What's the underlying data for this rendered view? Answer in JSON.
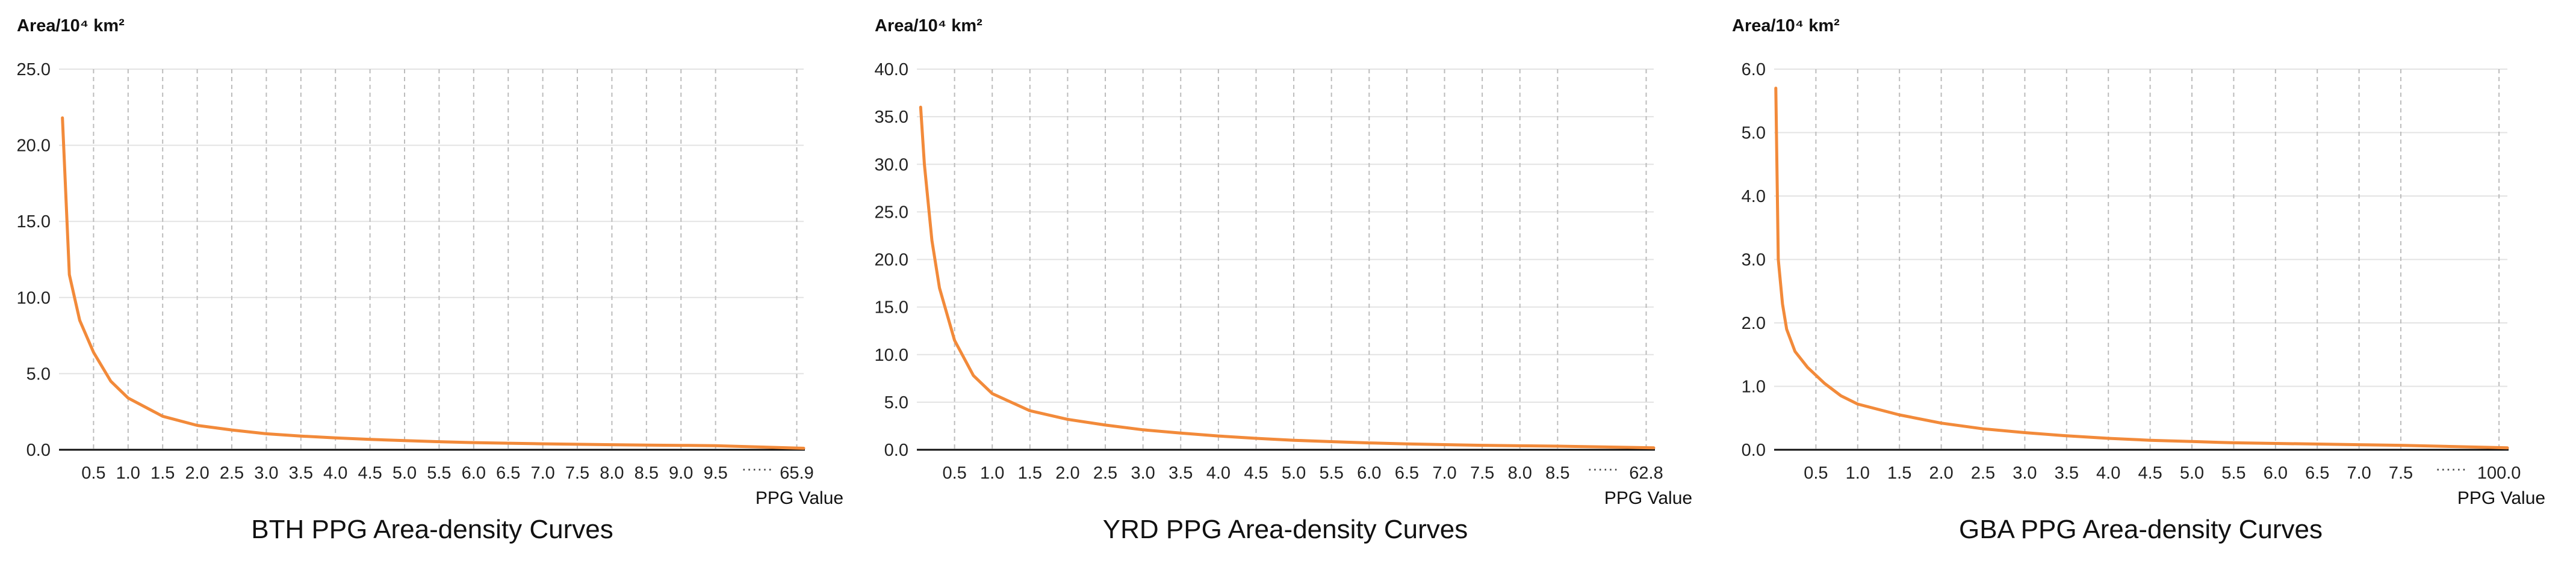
{
  "chart_data": [
    {
      "type": "line",
      "title": "BTH PPG Area-density Curves",
      "xlabel": "PPG Value",
      "ylabel": "Area/10⁴ km²",
      "ylim": [
        0,
        25
      ],
      "yticks": [
        "0.0",
        "5.0",
        "10.0",
        "15.0",
        "20.0",
        "25.0"
      ],
      "xticks": [
        "0.5",
        "1.0",
        "1.5",
        "2.0",
        "2.5",
        "3.0",
        "3.5",
        "4.0",
        "4.5",
        "5.0",
        "5.5",
        "6.0",
        "6.5",
        "7.0",
        "7.5",
        "8.0",
        "8.5",
        "9.0",
        "9.5"
      ],
      "x_ellipsis": "······",
      "x_max_label": "65.9",
      "grid": true,
      "color": "#f28a3a",
      "series": [
        {
          "x": [
            0.05,
            0.15,
            0.3,
            0.5,
            0.75,
            1.0,
            1.5,
            2.0,
            2.5,
            3.0,
            3.5,
            4.0,
            4.5,
            5.0,
            5.5,
            6.0,
            6.5,
            7.0,
            7.5,
            8.0,
            8.5,
            9.0,
            9.5,
            65.9
          ],
          "y": [
            21.8,
            11.5,
            8.5,
            6.4,
            4.5,
            3.4,
            2.2,
            1.6,
            1.3,
            1.05,
            0.9,
            0.78,
            0.68,
            0.6,
            0.53,
            0.47,
            0.43,
            0.39,
            0.36,
            0.33,
            0.31,
            0.29,
            0.27,
            0.1
          ]
        }
      ]
    },
    {
      "type": "line",
      "title": "YRD PPG Area-density Curves",
      "xlabel": "PPG Value",
      "ylabel": "Area/10⁴ km²",
      "ylim": [
        0,
        40
      ],
      "yticks": [
        "0.0",
        "5.0",
        "10.0",
        "15.0",
        "20.0",
        "25.0",
        "30.0",
        "35.0",
        "40.0"
      ],
      "xticks": [
        "0.5",
        "1.0",
        "1.5",
        "2.0",
        "2.5",
        "3.0",
        "3.5",
        "4.0",
        "4.5",
        "5.0",
        "5.5",
        "6.0",
        "6.5",
        "7.0",
        "7.5",
        "8.0",
        "8.5"
      ],
      "x_ellipsis": "······",
      "x_max_label": "62.8",
      "grid": true,
      "color": "#f28a3a",
      "series": [
        {
          "x": [
            0.05,
            0.1,
            0.2,
            0.3,
            0.5,
            0.75,
            1.0,
            1.5,
            2.0,
            2.5,
            3.0,
            3.5,
            4.0,
            4.5,
            5.0,
            5.5,
            6.0,
            6.5,
            7.0,
            7.5,
            8.0,
            8.5,
            62.8
          ],
          "y": [
            36.0,
            30.0,
            22.0,
            17.0,
            11.5,
            7.8,
            5.9,
            4.1,
            3.2,
            2.6,
            2.1,
            1.75,
            1.45,
            1.2,
            1.0,
            0.85,
            0.72,
            0.62,
            0.54,
            0.47,
            0.42,
            0.38,
            0.2
          ]
        }
      ]
    },
    {
      "type": "line",
      "title": "GBA PPG Area-density Curves",
      "xlabel": "PPG Value",
      "ylabel": "Area/10⁴ km²",
      "ylim": [
        0,
        6
      ],
      "yticks": [
        "0.0",
        "1.0",
        "2.0",
        "3.0",
        "4.0",
        "5.0",
        "6.0"
      ],
      "xticks": [
        "0.5",
        "1.0",
        "1.5",
        "2.0",
        "2.5",
        "3.0",
        "3.5",
        "4.0",
        "4.5",
        "5.0",
        "5.5",
        "6.0",
        "6.5",
        "7.0",
        "7.5"
      ],
      "x_ellipsis": "······",
      "x_max_label": "100.0",
      "grid": true,
      "color": "#f28a3a",
      "series": [
        {
          "x": [
            0.02,
            0.05,
            0.1,
            0.15,
            0.25,
            0.4,
            0.6,
            0.8,
            1.0,
            1.5,
            2.0,
            2.5,
            3.0,
            3.5,
            4.0,
            4.5,
            5.0,
            5.5,
            6.0,
            6.5,
            7.0,
            7.5,
            100.0
          ],
          "y": [
            5.7,
            3.0,
            2.3,
            1.9,
            1.55,
            1.3,
            1.05,
            0.85,
            0.72,
            0.55,
            0.42,
            0.33,
            0.27,
            0.22,
            0.18,
            0.15,
            0.13,
            0.11,
            0.1,
            0.09,
            0.08,
            0.07,
            0.03
          ]
        }
      ]
    }
  ]
}
